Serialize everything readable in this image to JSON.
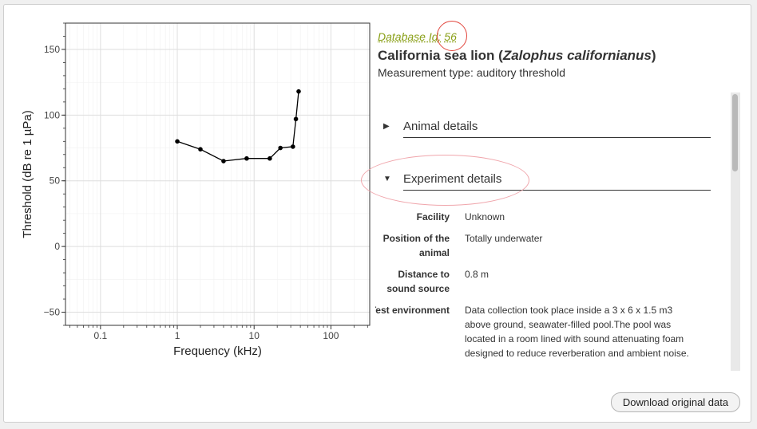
{
  "record": {
    "database_id_label": "Database Id:",
    "database_id": "56",
    "species_common": "California sea lion (",
    "species_latin": "Zalophus californianus",
    "species_close": ")",
    "measurement_type": "Measurement type: auditory threshold"
  },
  "sections": {
    "animal_details": "Animal details",
    "experiment_details": "Experiment details"
  },
  "experiment": [
    {
      "label": "Facility",
      "value": "Unknown"
    },
    {
      "label": "Position of the animal",
      "value": "Totally underwater"
    },
    {
      "label": "Distance to sound source",
      "value": "0.8 m"
    },
    {
      "label": "Test environment",
      "value": "Data collection took place inside a 3 x 6 x 1.5 m3 above ground, seawater-filled pool.The pool was located in a room lined with sound attenuating foam designed to reduce reverberation and ambient noise."
    }
  ],
  "download_label": "Download original data",
  "colors": {
    "link": "#8aa018",
    "annotation_circle": "#e2463d",
    "annotation_ellipse": "#f0a6ac"
  },
  "chart_data": {
    "type": "line",
    "xlabel": "Frequency (kHz)",
    "ylabel": "Threshold (dB re 1 µPa)",
    "xscale": "log",
    "xlim": [
      0.035,
      320
    ],
    "ylim": [
      -60,
      170
    ],
    "xticks": [
      {
        "value": 0.1,
        "label": "0.1"
      },
      {
        "value": 1,
        "label": "1"
      },
      {
        "value": 10,
        "label": "10"
      },
      {
        "value": 100,
        "label": "100"
      }
    ],
    "yticks": [
      {
        "value": -50,
        "label": "−50"
      },
      {
        "value": 0,
        "label": "0"
      },
      {
        "value": 50,
        "label": "50"
      },
      {
        "value": 100,
        "label": "100"
      },
      {
        "value": 150,
        "label": "150"
      }
    ],
    "grid": true,
    "legend": "none",
    "series": [
      {
        "x": [
          1,
          2,
          4,
          8,
          16,
          22,
          32,
          35,
          38
        ],
        "y": [
          80,
          74,
          65,
          67,
          67,
          75,
          76,
          97,
          118
        ]
      }
    ]
  }
}
